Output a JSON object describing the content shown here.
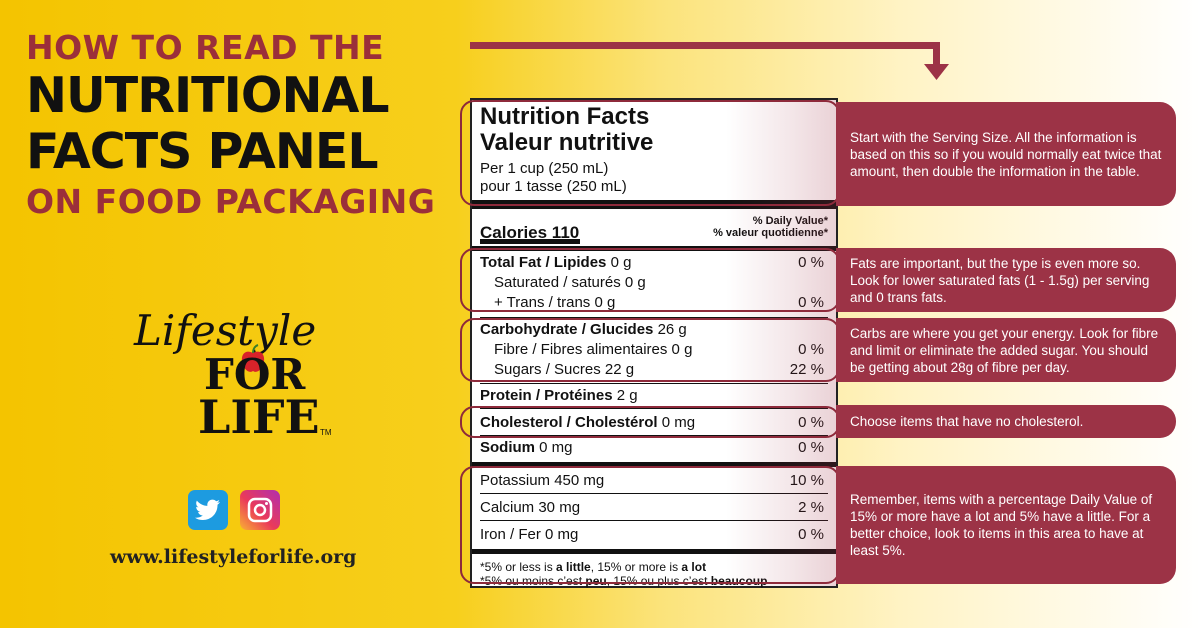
{
  "title": {
    "line1": "HOW TO READ THE",
    "line2": "NUTRITIONAL",
    "line3": "FACTS PANEL",
    "line4": "ON FOOD PACKAGING"
  },
  "logo": {
    "script": "Lifestyle",
    "for": "FOR",
    "life": "LIFE",
    "tm": "TM"
  },
  "website": "www.lifestyleforlife.org",
  "colors": {
    "accent": "#9c3346",
    "title_red": "#9b2f3a",
    "yellow": "#f4c400",
    "twitter": "#1d9be0"
  },
  "icons": [
    "twitter-icon",
    "instagram-icon",
    "apple-icon",
    "down-arrow-icon"
  ],
  "panel": {
    "title_en": "Nutrition Facts",
    "title_fr": "Valeur nutritive",
    "serving_en": "Per 1 cup (250 mL)",
    "serving_fr": "pour 1 tasse (250 mL)",
    "calories": "Calories 110",
    "dv_en": "% Daily Value*",
    "dv_fr": "% valeur quotidienne*",
    "fat": {
      "label": "Total Fat / Lipides",
      "value": "0 g",
      "pct": "0 %"
    },
    "saturated": {
      "label": "Saturated / saturés 0 g"
    },
    "trans": {
      "label": "+ Trans / trans 0 g",
      "pct": "0 %"
    },
    "carb": {
      "label": "Carbohydrate / Glucides",
      "value": "26 g"
    },
    "fibre": {
      "label": "Fibre / Fibres alimentaires 0 g",
      "pct": "0 %"
    },
    "sugars": {
      "label": "Sugars / Sucres 22 g",
      "pct": "22 %"
    },
    "protein": {
      "label": "Protein / Protéines",
      "value": "2 g"
    },
    "cholesterol": {
      "label": "Cholesterol / Cholestérol",
      "value": "0 mg",
      "pct": "0 %"
    },
    "sodium": {
      "label": "Sodium",
      "value": "0 mg",
      "pct": "0 %"
    },
    "potassium": {
      "label": "Potassium 450 mg",
      "pct": "10 %"
    },
    "calcium": {
      "label": "Calcium 30 mg",
      "pct": "2 %"
    },
    "iron": {
      "label": "Iron / Fer 0 mg",
      "pct": "0 %"
    },
    "foot_en_a": "*5% or less is ",
    "foot_en_b": "a little",
    "foot_en_c": ", 15% or more is ",
    "foot_en_d": "a lot",
    "foot_fr_a": "*5% ou moins c’est ",
    "foot_fr_b": "peu",
    "foot_fr_c": ", 15% ou plus c’est ",
    "foot_fr_d": "beaucoup"
  },
  "callouts": {
    "serving": "Start with the Serving Size. All the information is based on this so if you would normally eat twice that amount, then double the information in the table.",
    "fats": "Fats are important, but the type is even more so. Look for lower saturated fats (1 - 1.5g) per serving and 0 trans fats.",
    "carbs": "Carbs are where you get your energy. Look for fibre and limit or eliminate the added sugar. You should be getting about 28g of fibre per day.",
    "cholesterol": "Choose items that have no cholesterol.",
    "daily_value": "Remember, items with a percentage Daily Value of 15% or more have a lot and 5% have a little. For a better choice, look to items in this area to have at least 5%."
  }
}
